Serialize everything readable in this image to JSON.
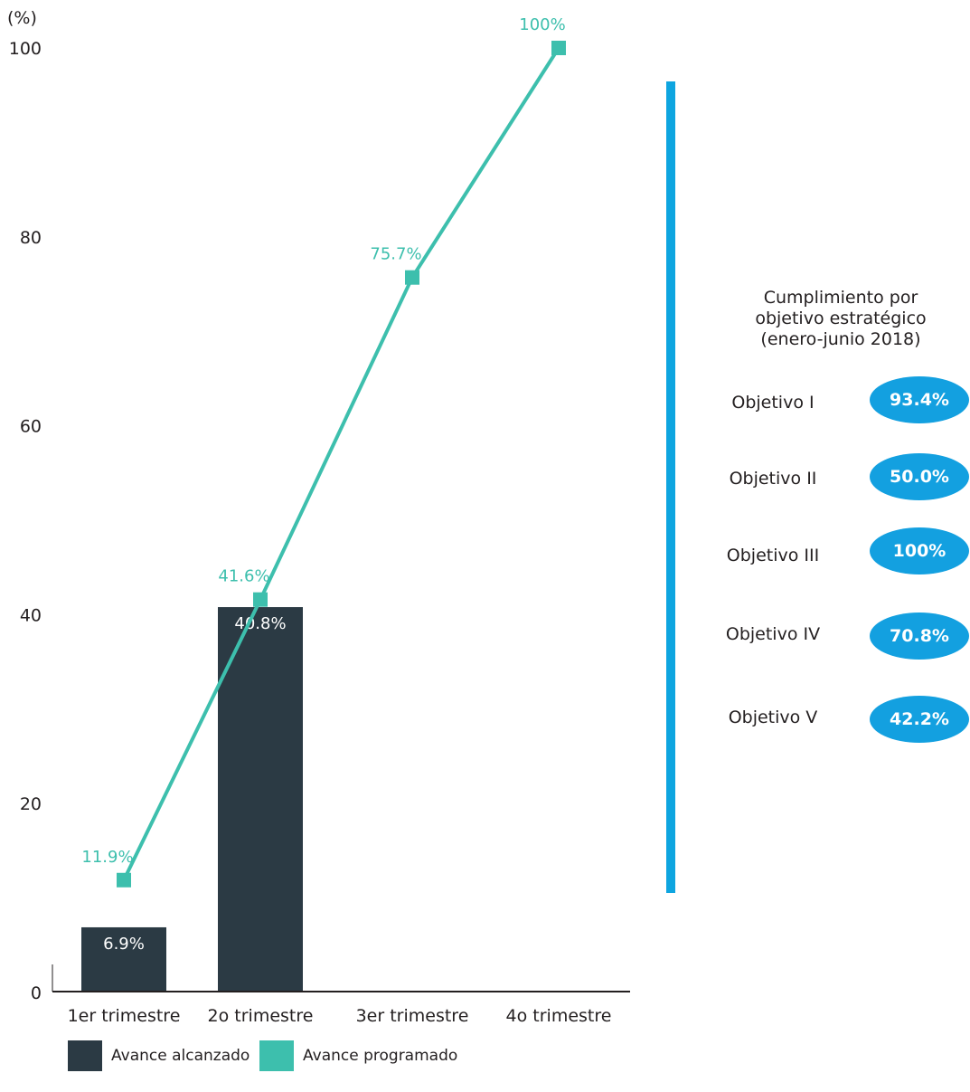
{
  "chart_data": {
    "type": "bar+line",
    "unit_label": "(%)",
    "categories": [
      "1er trimestre",
      "2o trimestre",
      "3er trimestre",
      "4o trimestre"
    ],
    "ylim": [
      0,
      100
    ],
    "yticks": [
      "0",
      "20",
      "40",
      "60",
      "80",
      "100"
    ],
    "series": [
      {
        "name": "Avance alcanzado",
        "type": "bar",
        "color": "#2b3a44",
        "values": [
          6.9,
          40.8,
          null,
          null
        ],
        "labels": [
          "6.9%",
          "40.8%",
          "",
          ""
        ]
      },
      {
        "name": "Avance programado",
        "type": "line",
        "color": "#3dbfad",
        "values": [
          11.9,
          41.6,
          75.7,
          100
        ],
        "labels": [
          "11.9%",
          "41.6%",
          "75.7%",
          "100%"
        ]
      }
    ],
    "legend_position": "bottom-left",
    "grid": false
  },
  "side_panel": {
    "title_lines": [
      "Cumplimiento por",
      "objetivo estratégico",
      "(enero-junio 2018)"
    ],
    "divider_color": "#0ea5e0",
    "pill_color": "#13a0e0",
    "objectives": [
      {
        "label": "Objetivo I",
        "value": "93.4%"
      },
      {
        "label": "Objetivo II",
        "value": "50.0%"
      },
      {
        "label": "Objetivo III",
        "value": "100%"
      },
      {
        "label": "Objetivo IV",
        "value": "70.8%"
      },
      {
        "label": "Objetivo V",
        "value": "42.2%"
      }
    ]
  },
  "legend": [
    {
      "label": "Avance alcanzado",
      "color": "#2b3a44"
    },
    {
      "label": "Avance programado",
      "color": "#3dbfad"
    }
  ]
}
